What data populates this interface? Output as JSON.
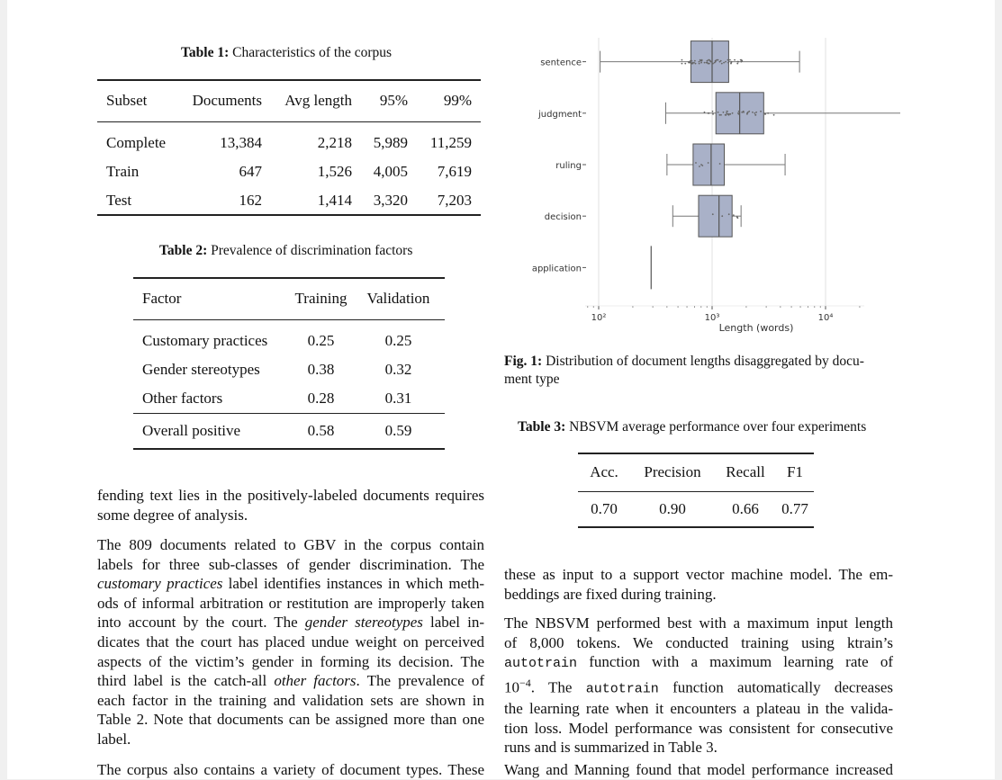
{
  "table1": {
    "label": "Table 1:",
    "title": "Characteristics of the corpus",
    "headers": [
      "Subset",
      "Documents",
      "Avg length",
      "95%",
      "99%"
    ],
    "rows": [
      [
        "Complete",
        "13,384",
        "2,218",
        "5,989",
        "11,259"
      ],
      [
        "Train",
        "647",
        "1,526",
        "4,005",
        "7,619"
      ],
      [
        "Test",
        "162",
        "1,414",
        "3,320",
        "7,203"
      ]
    ]
  },
  "table2": {
    "label": "Table 2:",
    "title": "Prevalence of discrimination factors",
    "headers": [
      "Factor",
      "Training",
      "Validation"
    ],
    "rows": [
      [
        "Customary practices",
        "0.25",
        "0.25"
      ],
      [
        "Gender stereotypes",
        "0.38",
        "0.32"
      ],
      [
        "Other factors",
        "0.28",
        "0.31"
      ]
    ],
    "total": [
      "Overall positive",
      "0.58",
      "0.59"
    ]
  },
  "table3": {
    "label": "Table 3:",
    "title": "NBSVM average performance over four experiments",
    "headers": [
      "Acc.",
      "Precision",
      "Recall",
      "F1"
    ],
    "row": [
      "0.70",
      "0.90",
      "0.66",
      "0.77"
    ]
  },
  "figure1": {
    "label": "Fig. 1:",
    "caption_line1": "Distribution of document lengths disaggregated by docu-",
    "caption_line2": "ment type"
  },
  "chart_data": {
    "type": "box",
    "xlabel": "Length (words)",
    "xscale": "log",
    "xlim": [
      100,
      10000
    ],
    "x_ticks": [
      "10²",
      "10³",
      "10⁴"
    ],
    "grid": "vertical at decades",
    "categories": [
      "sentence",
      "judgment",
      "ruling",
      "decision",
      "application"
    ],
    "color": "#a9b1c8",
    "boxes": [
      {
        "category": "sentence",
        "whisker_low": 103,
        "q1": 650,
        "median": 1000,
        "q3": 1400,
        "whisker_high": 5900
      },
      {
        "category": "judgment",
        "whisker_low": 390,
        "q1": 1080,
        "median": 1750,
        "q3": 2850,
        "whisker_high": 48500
      },
      {
        "category": "ruling",
        "whisker_low": 400,
        "q1": 680,
        "median": 980,
        "q3": 1280,
        "whisker_high": 4400
      },
      {
        "category": "decision",
        "whisker_low": 450,
        "q1": 760,
        "median": 1150,
        "q3": 1500,
        "whisker_high": 1800
      },
      {
        "category": "application",
        "whisker_low": 290,
        "q1": 290,
        "median": 290,
        "q3": 290,
        "whisker_high": 290
      }
    ]
  },
  "left_text": {
    "p1": [
      "fending text lies in the positively-labeled documents requires",
      "some degree of analysis."
    ],
    "p2_lines": [
      {
        "segments": [
          {
            "t": "The 809 documents related to GBV in the corpus contain"
          }
        ]
      },
      {
        "segments": [
          {
            "t": "labels for three sub-classes of gender discrimination.  The"
          }
        ]
      },
      {
        "segments": [
          {
            "t": "customary practices",
            "i": true
          },
          {
            "t": " label identifies instances in which meth-"
          }
        ]
      },
      {
        "segments": [
          {
            "t": "ods of informal arbitration or restitution are improperly taken"
          }
        ]
      },
      {
        "segments": [
          {
            "t": "into account by the court. The "
          },
          {
            "t": "gender stereotypes",
            "i": true
          },
          {
            "t": " label in-"
          }
        ]
      },
      {
        "segments": [
          {
            "t": "dicates that the court has placed undue weight on perceived"
          }
        ]
      },
      {
        "segments": [
          {
            "t": "aspects of the victim’s gender in forming its decision. The"
          }
        ]
      },
      {
        "segments": [
          {
            "t": "third label is the catch-all "
          },
          {
            "t": "other factors",
            "i": true
          },
          {
            "t": ". The prevalence of"
          }
        ]
      },
      {
        "segments": [
          {
            "t": "each factor in the training and validation sets are shown in"
          }
        ]
      },
      {
        "segments": [
          {
            "t": "Table 2. Note that documents can be assigned more than one"
          }
        ]
      },
      {
        "segments": [
          {
            "t": "label."
          }
        ]
      }
    ],
    "p3": "The corpus also contains a variety of document types. These"
  },
  "right_text": {
    "p1": [
      "these as input to a support vector machine model. The em-",
      "beddings are fixed during training."
    ],
    "p2_lines": [
      {
        "segments": [
          {
            "t": "The NBSVM performed best with a maximum input length"
          }
        ]
      },
      {
        "segments": [
          {
            "t": "of 8,000 tokens.   We conducted training using ktrain’s"
          }
        ]
      },
      {
        "segments": [
          {
            "t": "autotrain",
            "m": true
          },
          {
            "t": " function with a maximum learning rate of"
          }
        ]
      },
      {
        "segments": [
          {
            "t": "10"
          },
          {
            "t": "−4",
            "sup": true
          },
          {
            "t": ". The "
          },
          {
            "t": "autotrain",
            "m": true
          },
          {
            "t": " function automatically decreases"
          }
        ]
      },
      {
        "segments": [
          {
            "t": "the learning rate when it encounters a plateau in the valida-"
          }
        ]
      },
      {
        "segments": [
          {
            "t": "tion loss. Model performance was consistent for consecutive"
          }
        ]
      },
      {
        "segments": [
          {
            "t": "runs and is summarized in Table 3."
          }
        ]
      }
    ],
    "p3": "Wang and Manning found that model performance increased"
  }
}
